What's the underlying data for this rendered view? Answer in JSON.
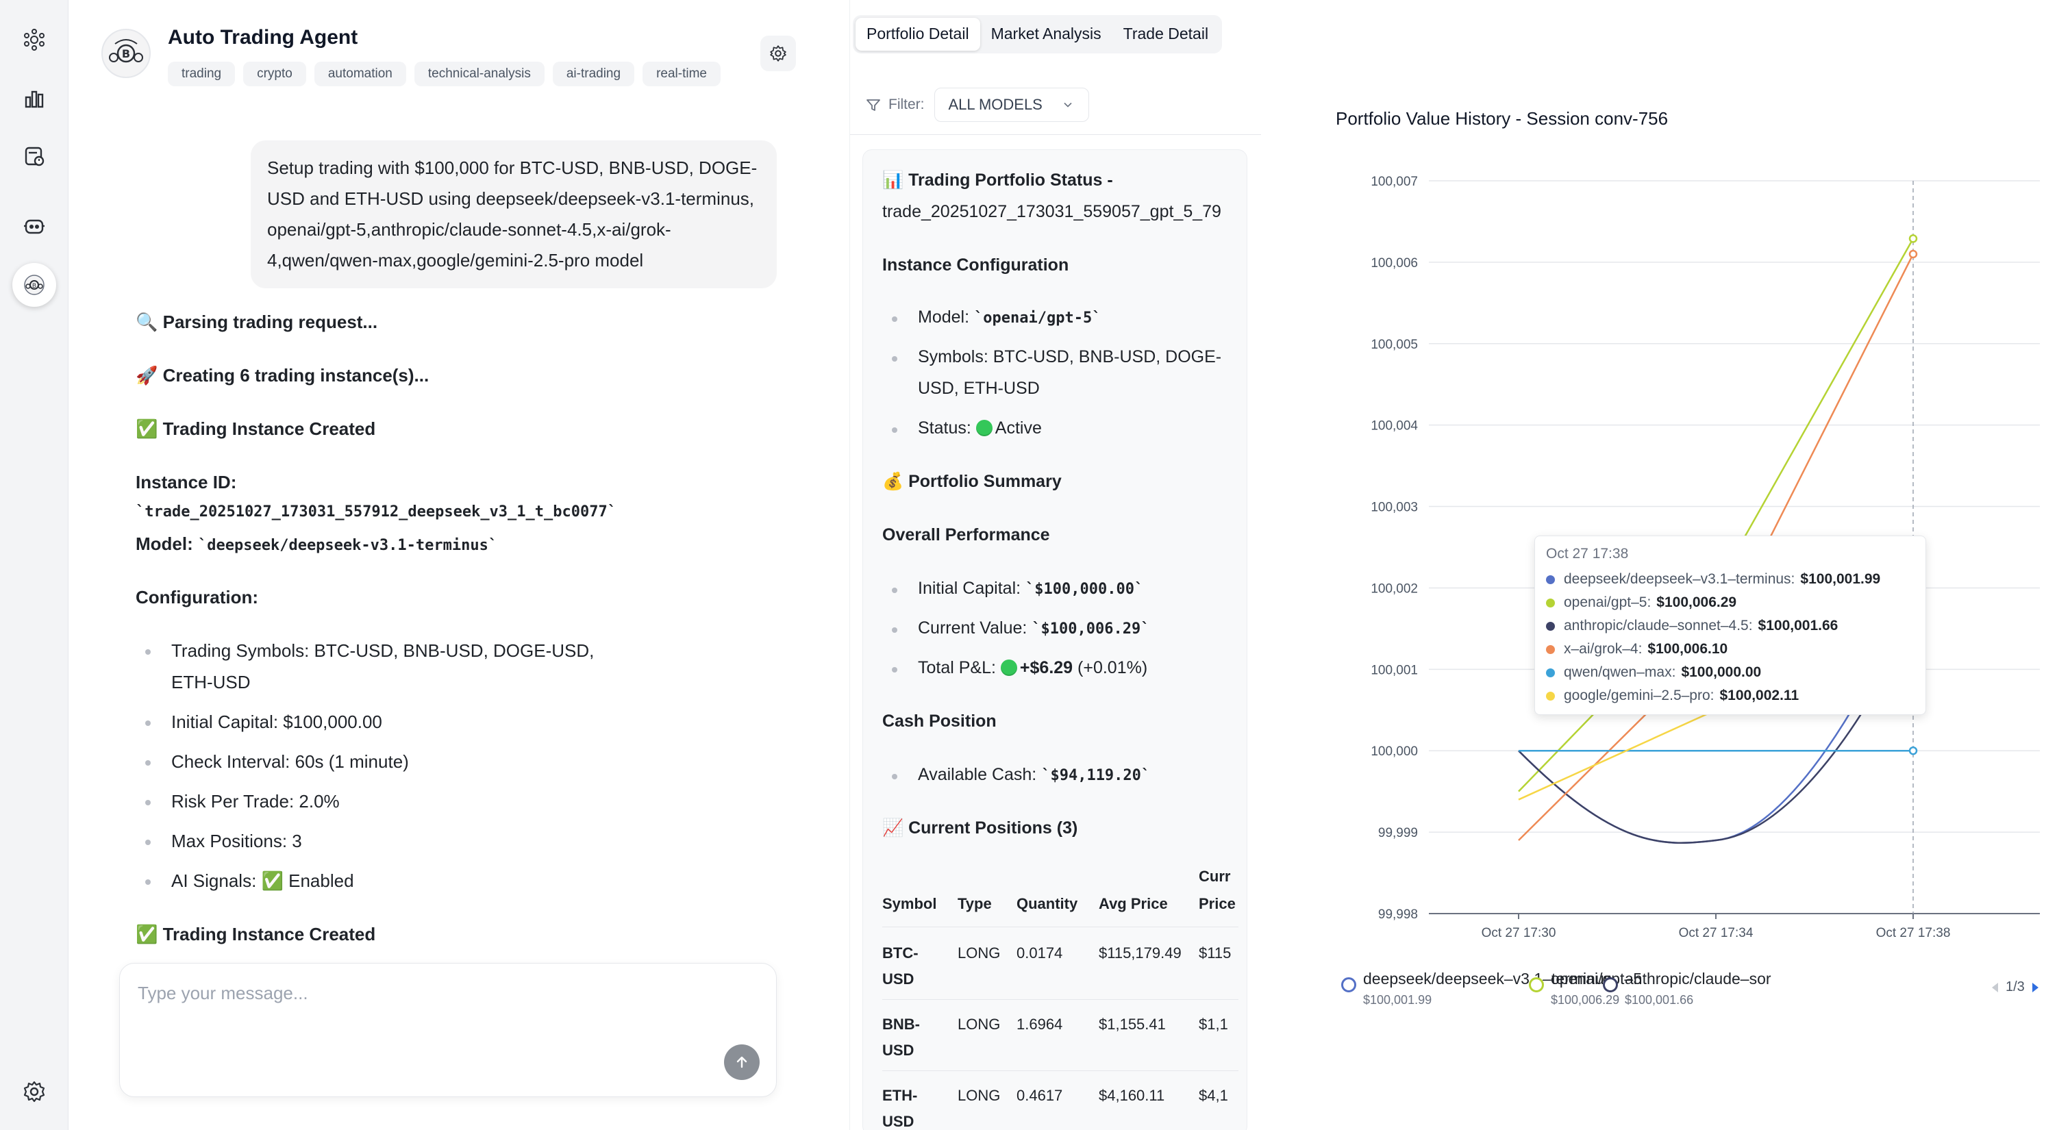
{
  "rail": {
    "items": [
      {
        "name": "nodes-icon"
      },
      {
        "name": "chart-icon"
      },
      {
        "name": "schedule-icon"
      },
      {
        "name": "robot-icon"
      },
      {
        "name": "trading-agent-icon"
      }
    ],
    "bottom_icon": "settings-icon"
  },
  "agent": {
    "title": "Auto Trading Agent",
    "tags": [
      "trading",
      "crypto",
      "automation",
      "technical-analysis",
      "ai-trading",
      "real-time"
    ]
  },
  "user_message": "Setup trading with $100,000 for BTC-USD, BNB-USD, DOGE-USD and ETH-USD using deepseek/deepseek-v3.1-terminus, openai/gpt-5,anthropic/claude-sonnet-4.5,x-ai/grok-4,qwen/qwen-max,google/gemini-2.5-pro model",
  "assistant": {
    "parsing": "🔍 Parsing trading request...",
    "creating": "🚀 Creating 6 trading instance(s)...",
    "created": "✅ Trading Instance Created",
    "instance_id_label": "Instance ID:",
    "instance_id": "`trade_20251027_173031_557912_deepseek_v3_1_t_bc0077`",
    "model_label": "Model:",
    "model": "`deepseek/deepseek-v3.1-terminus`",
    "configuration_label": "Configuration:",
    "config_items": [
      "Trading Symbols: BTC-USD, BNB-USD, DOGE-USD,",
      "ETH-USD",
      "Initial Capital: $100,000.00",
      "Check Interval: 60s (1 minute)",
      "Risk Per Trade: 2.0%",
      "Max Positions: 3",
      "AI Signals: ✅ Enabled"
    ],
    "created_2": "✅ Trading Instance Created"
  },
  "composer": {
    "placeholder": "Type your message..."
  },
  "panel": {
    "tabs": [
      "Portfolio Detail",
      "Market Analysis",
      "Trade Detail"
    ],
    "filter_label": "Filter:",
    "filter_value": "ALL MODELS"
  },
  "status": {
    "title_1": "📊 Trading Portfolio Status -",
    "title_2": "trade_20251027_173031_559057_gpt_5_79",
    "instance_config": "Instance Configuration",
    "model_label": "Model:",
    "model_value": "`openai/gpt-5`",
    "symbols_1": "Symbols: BTC-USD, BNB-USD, DOGE-",
    "symbols_2": "USD, ETH-USD",
    "status_label": "Status:",
    "status_value": "Active",
    "portfolio_summary": "💰 Portfolio Summary",
    "overall_performance": "Overall Performance",
    "initial_label": "Initial Capital:",
    "initial_value": "`$100,000.00`",
    "current_label": "Current Value:",
    "current_value": "`$100,006.29`",
    "pnl_label": "Total P&L:",
    "pnl_value": "+$6.29",
    "pnl_pct": "(+0.01%)",
    "cash_position": "Cash Position",
    "cash_label": "Available Cash:",
    "cash_value": "`$94,119.20`",
    "positions_title": "📈 Current Positions (3)",
    "positions": {
      "headers": [
        "Symbol",
        "Type",
        "Quantity",
        "Avg Price",
        "Curr",
        "Price"
      ],
      "rows": [
        {
          "symbol_1": "BTC-",
          "symbol_2": "USD",
          "type": "LONG",
          "qty": "0.0174",
          "avg": "$115,179.49",
          "cur": "$115"
        },
        {
          "symbol_1": "BNB-",
          "symbol_2": "USD",
          "type": "LONG",
          "qty": "1.6964",
          "avg": "$1,155.41",
          "cur": "$1,1"
        },
        {
          "symbol_1": "ETH-",
          "symbol_2": "USD",
          "type": "LONG",
          "qty": "0.4617",
          "avg": "$4,160.11",
          "cur": "$4,1"
        }
      ]
    }
  },
  "chart_data": {
    "type": "line",
    "title": "Portfolio Value History - Session conv-756",
    "x_ticks": [
      "Oct 27 17:30",
      "Oct 27 17:34",
      "Oct 27 17:38"
    ],
    "y_ticks": [
      "99,998",
      "99,999",
      "100,000",
      "100,001",
      "100,002",
      "100,003",
      "100,004",
      "100,005",
      "100,006",
      "100,007"
    ],
    "ylim": [
      99998,
      100007
    ],
    "x_minutes": [
      30,
      38
    ],
    "grid": true,
    "legend_position": "bottom",
    "series": [
      {
        "name": "deepseek/deepseek-v3.1-terminus",
        "color": "#5470c6",
        "value_label": "$100,001.99",
        "points": [
          [
            30,
            100000.0
          ],
          [
            34,
            99998.9
          ],
          [
            38,
            100001.99
          ]
        ],
        "curve": true
      },
      {
        "name": "openai/gpt-5",
        "color": "#b5d334",
        "value_label": "$100,006.29",
        "points": [
          [
            30,
            99999.5
          ],
          [
            34,
            100002.0
          ],
          [
            38,
            100006.29
          ]
        ],
        "curve": false
      },
      {
        "name": "anthropic/claude-sonnet-4.5",
        "color": "#3d4266",
        "value_label": "$100,001.66",
        "points": [
          [
            30,
            100000.0
          ],
          [
            34,
            99998.9
          ],
          [
            38,
            100001.66
          ]
        ],
        "curve": true
      },
      {
        "name": "x-ai/grok-4",
        "color": "#ee8a55",
        "value_label": "$100,006.10",
        "points": [
          [
            30,
            99998.9
          ],
          [
            34,
            100001.3
          ],
          [
            38,
            100006.1
          ]
        ],
        "curve": false
      },
      {
        "name": "qwen/qwen-max",
        "color": "#3ba2d8",
        "value_label": "$100,000.00",
        "points": [
          [
            30,
            100000.0
          ],
          [
            38,
            100000.0
          ]
        ],
        "curve": false
      },
      {
        "name": "google/gemini-2.5-pro",
        "color": "#f6d646",
        "value_label": "$100,002.11",
        "points": [
          [
            30,
            99999.4
          ],
          [
            34,
            100000.5
          ],
          [
            38,
            100002.11
          ]
        ],
        "curve": false
      }
    ],
    "tooltip": {
      "time": "Oct 27 17:38",
      "rows": [
        {
          "name": "deepseek/deepseek–v3.1–terminus:",
          "value": "$100,001.99",
          "color": "#5470c6"
        },
        {
          "name": "openai/gpt–5:",
          "value": "$100,006.29",
          "color": "#b5d334"
        },
        {
          "name": "anthropic/claude–sonnet–4.5:",
          "value": "$100,001.66",
          "color": "#3d4266"
        },
        {
          "name": "x–ai/grok–4:",
          "value": "$100,006.10",
          "color": "#ee8a55"
        },
        {
          "name": "qwen/qwen–max:",
          "value": "$100,000.00",
          "color": "#3ba2d8"
        },
        {
          "name": "google/gemini–2.5–pro:",
          "value": "$100,002.11",
          "color": "#f6d646"
        }
      ]
    },
    "legend": [
      {
        "name": "deepseek/deepseek–v3.1–terminus",
        "value": "$100,001.99",
        "color": "#5470c6"
      },
      {
        "name": "openai/gpt–5",
        "value": "$100,006.29",
        "color": "#b5d334"
      },
      {
        "name": "anthropic/claude–sor",
        "value": "$100,001.66",
        "color": "#3d4266"
      }
    ],
    "legend_pager": "1/3"
  }
}
